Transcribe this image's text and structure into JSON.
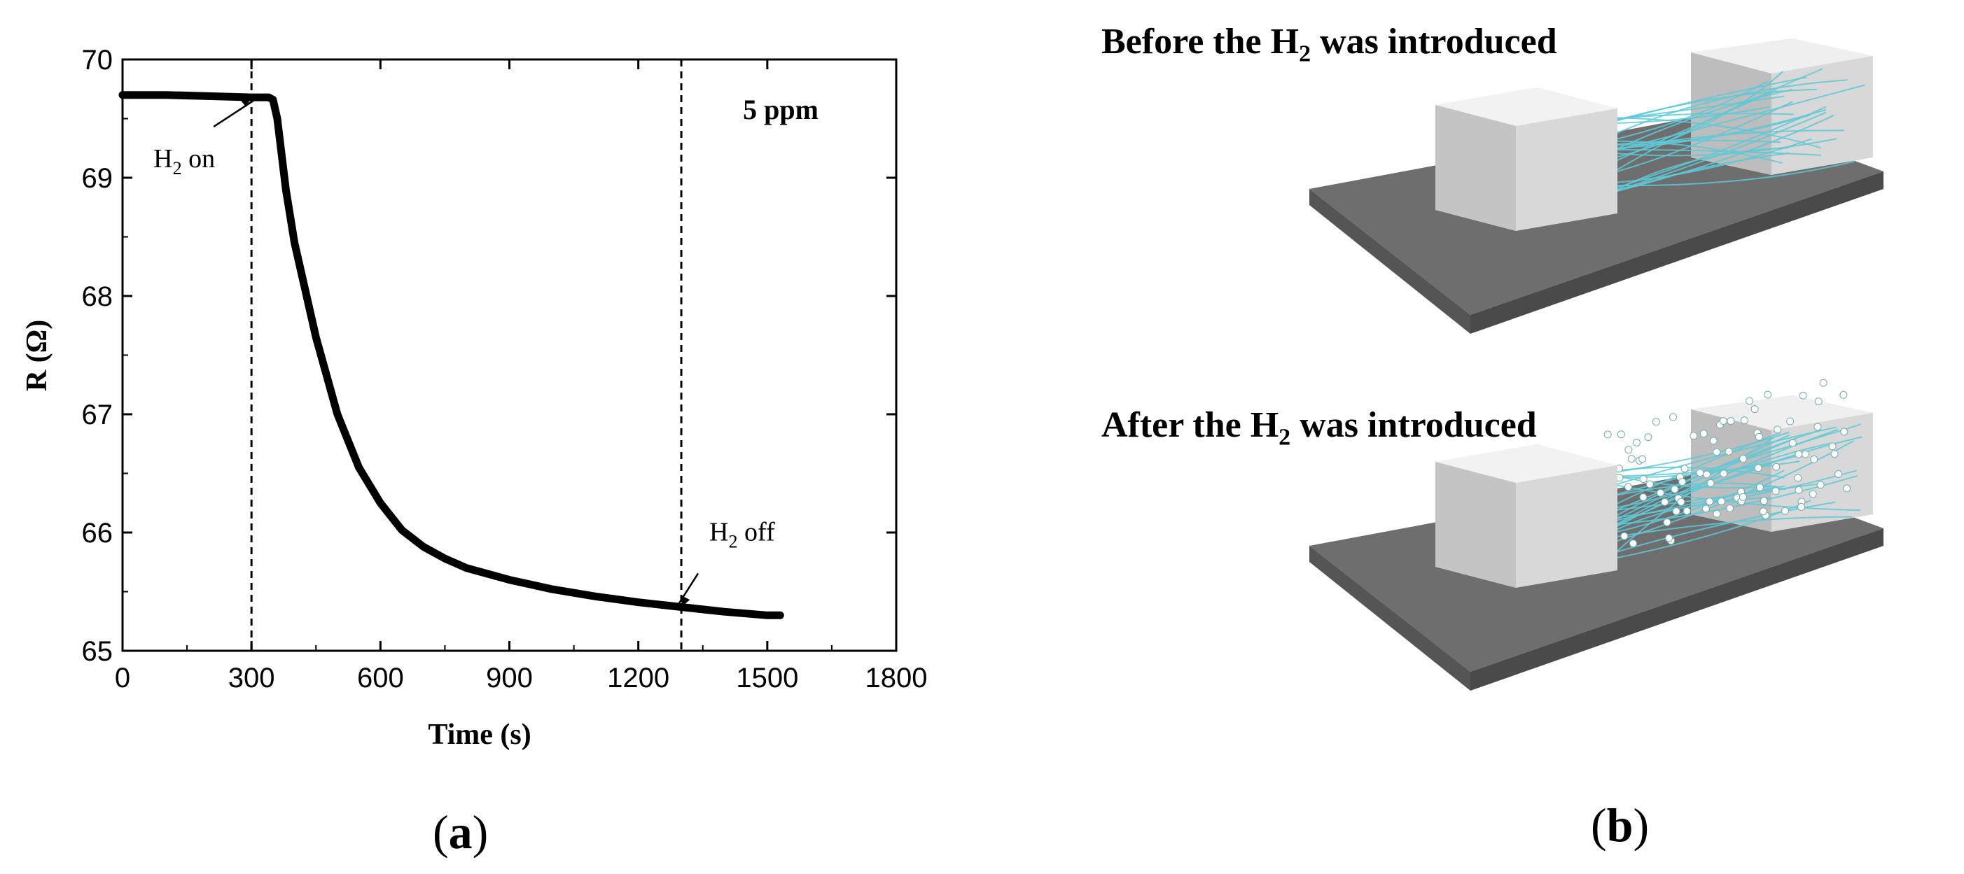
{
  "chart_data": {
    "type": "line",
    "xlabel": "Time (s)",
    "ylabel": "R (Ω)",
    "xlim": [
      0,
      1800
    ],
    "ylim": [
      65,
      70
    ],
    "x_ticks": [
      "0",
      "300",
      "600",
      "900",
      "1200",
      "1500",
      "1800"
    ],
    "y_ticks": [
      "65",
      "66",
      "67",
      "68",
      "69",
      "70"
    ],
    "grid": false,
    "legend": "none",
    "series": [
      {
        "color": "#000000",
        "x": [
          0,
          100,
          200,
          300,
          340,
          350,
          360,
          380,
          400,
          450,
          500,
          550,
          600,
          650,
          700,
          750,
          800,
          900,
          1000,
          1100,
          1200,
          1300,
          1400,
          1500,
          1530
        ],
        "y": [
          69.7,
          69.7,
          69.69,
          69.68,
          69.68,
          69.66,
          69.5,
          68.9,
          68.45,
          67.65,
          67.0,
          66.55,
          66.25,
          66.02,
          65.88,
          65.78,
          65.7,
          65.6,
          65.52,
          65.46,
          65.41,
          65.37,
          65.33,
          65.3,
          65.3
        ]
      }
    ],
    "vlines": [
      300,
      1300
    ],
    "annotations": [
      {
        "base": "H",
        "sub": "2",
        "rest": " on",
        "x": 300,
        "y": 69.68
      },
      {
        "base": "H",
        "sub": "2",
        "rest": " off",
        "x": 1300,
        "y": 65.37
      }
    ],
    "corner_label": "5 ppm"
  },
  "panel_b": {
    "before": {
      "pre": "Before the H",
      "sub": "2",
      "post": " was introduced"
    },
    "after": {
      "pre": "After the H",
      "sub": "2",
      "post": " was introduced"
    }
  },
  "panels": {
    "a": {
      "open": "(",
      "letter": "a",
      "close": ")"
    },
    "b": {
      "open": "(",
      "letter": "b",
      "close": ")"
    }
  },
  "colors": {
    "substrate": "#6b6b6b",
    "electrode": "#e2e2e2",
    "nanowire": "#5fc9d6",
    "particle": "#ffffff"
  }
}
